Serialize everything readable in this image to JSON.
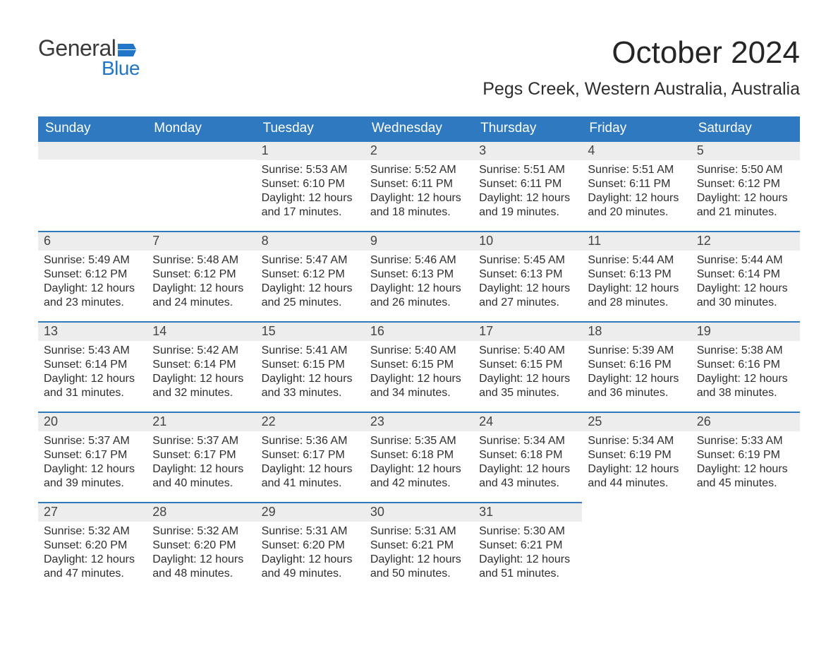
{
  "logo": {
    "text_general": "General",
    "text_blue": "Blue",
    "flag_color": "#2176c7"
  },
  "title": "October 2024",
  "subtitle": "Pegs Creek, Western Australia, Australia",
  "colors": {
    "header_bg": "#2e79c0",
    "header_text": "#ffffff",
    "daybar_bg": "#ededed",
    "daybar_border": "#2e79c0",
    "body_text": "#2e2e2e",
    "logo_blue": "#2176c7",
    "logo_gray": "#3a3a3a",
    "page_bg": "#ffffff"
  },
  "typography": {
    "title_fontsize": 44,
    "subtitle_fontsize": 25,
    "header_fontsize": 19,
    "daynum_fontsize": 18,
    "cell_fontsize": 16,
    "font_family": "Arial"
  },
  "weekdays": [
    "Sunday",
    "Monday",
    "Tuesday",
    "Wednesday",
    "Thursday",
    "Friday",
    "Saturday"
  ],
  "weeks": [
    [
      null,
      null,
      {
        "n": "1",
        "sunrise": "Sunrise: 5:53 AM",
        "sunset": "Sunset: 6:10 PM",
        "daylight": "Daylight: 12 hours and 17 minutes."
      },
      {
        "n": "2",
        "sunrise": "Sunrise: 5:52 AM",
        "sunset": "Sunset: 6:11 PM",
        "daylight": "Daylight: 12 hours and 18 minutes."
      },
      {
        "n": "3",
        "sunrise": "Sunrise: 5:51 AM",
        "sunset": "Sunset: 6:11 PM",
        "daylight": "Daylight: 12 hours and 19 minutes."
      },
      {
        "n": "4",
        "sunrise": "Sunrise: 5:51 AM",
        "sunset": "Sunset: 6:11 PM",
        "daylight": "Daylight: 12 hours and 20 minutes."
      },
      {
        "n": "5",
        "sunrise": "Sunrise: 5:50 AM",
        "sunset": "Sunset: 6:12 PM",
        "daylight": "Daylight: 12 hours and 21 minutes."
      }
    ],
    [
      {
        "n": "6",
        "sunrise": "Sunrise: 5:49 AM",
        "sunset": "Sunset: 6:12 PM",
        "daylight": "Daylight: 12 hours and 23 minutes."
      },
      {
        "n": "7",
        "sunrise": "Sunrise: 5:48 AM",
        "sunset": "Sunset: 6:12 PM",
        "daylight": "Daylight: 12 hours and 24 minutes."
      },
      {
        "n": "8",
        "sunrise": "Sunrise: 5:47 AM",
        "sunset": "Sunset: 6:12 PM",
        "daylight": "Daylight: 12 hours and 25 minutes."
      },
      {
        "n": "9",
        "sunrise": "Sunrise: 5:46 AM",
        "sunset": "Sunset: 6:13 PM",
        "daylight": "Daylight: 12 hours and 26 minutes."
      },
      {
        "n": "10",
        "sunrise": "Sunrise: 5:45 AM",
        "sunset": "Sunset: 6:13 PM",
        "daylight": "Daylight: 12 hours and 27 minutes."
      },
      {
        "n": "11",
        "sunrise": "Sunrise: 5:44 AM",
        "sunset": "Sunset: 6:13 PM",
        "daylight": "Daylight: 12 hours and 28 minutes."
      },
      {
        "n": "12",
        "sunrise": "Sunrise: 5:44 AM",
        "sunset": "Sunset: 6:14 PM",
        "daylight": "Daylight: 12 hours and 30 minutes."
      }
    ],
    [
      {
        "n": "13",
        "sunrise": "Sunrise: 5:43 AM",
        "sunset": "Sunset: 6:14 PM",
        "daylight": "Daylight: 12 hours and 31 minutes."
      },
      {
        "n": "14",
        "sunrise": "Sunrise: 5:42 AM",
        "sunset": "Sunset: 6:14 PM",
        "daylight": "Daylight: 12 hours and 32 minutes."
      },
      {
        "n": "15",
        "sunrise": "Sunrise: 5:41 AM",
        "sunset": "Sunset: 6:15 PM",
        "daylight": "Daylight: 12 hours and 33 minutes."
      },
      {
        "n": "16",
        "sunrise": "Sunrise: 5:40 AM",
        "sunset": "Sunset: 6:15 PM",
        "daylight": "Daylight: 12 hours and 34 minutes."
      },
      {
        "n": "17",
        "sunrise": "Sunrise: 5:40 AM",
        "sunset": "Sunset: 6:15 PM",
        "daylight": "Daylight: 12 hours and 35 minutes."
      },
      {
        "n": "18",
        "sunrise": "Sunrise: 5:39 AM",
        "sunset": "Sunset: 6:16 PM",
        "daylight": "Daylight: 12 hours and 36 minutes."
      },
      {
        "n": "19",
        "sunrise": "Sunrise: 5:38 AM",
        "sunset": "Sunset: 6:16 PM",
        "daylight": "Daylight: 12 hours and 38 minutes."
      }
    ],
    [
      {
        "n": "20",
        "sunrise": "Sunrise: 5:37 AM",
        "sunset": "Sunset: 6:17 PM",
        "daylight": "Daylight: 12 hours and 39 minutes."
      },
      {
        "n": "21",
        "sunrise": "Sunrise: 5:37 AM",
        "sunset": "Sunset: 6:17 PM",
        "daylight": "Daylight: 12 hours and 40 minutes."
      },
      {
        "n": "22",
        "sunrise": "Sunrise: 5:36 AM",
        "sunset": "Sunset: 6:17 PM",
        "daylight": "Daylight: 12 hours and 41 minutes."
      },
      {
        "n": "23",
        "sunrise": "Sunrise: 5:35 AM",
        "sunset": "Sunset: 6:18 PM",
        "daylight": "Daylight: 12 hours and 42 minutes."
      },
      {
        "n": "24",
        "sunrise": "Sunrise: 5:34 AM",
        "sunset": "Sunset: 6:18 PM",
        "daylight": "Daylight: 12 hours and 43 minutes."
      },
      {
        "n": "25",
        "sunrise": "Sunrise: 5:34 AM",
        "sunset": "Sunset: 6:19 PM",
        "daylight": "Daylight: 12 hours and 44 minutes."
      },
      {
        "n": "26",
        "sunrise": "Sunrise: 5:33 AM",
        "sunset": "Sunset: 6:19 PM",
        "daylight": "Daylight: 12 hours and 45 minutes."
      }
    ],
    [
      {
        "n": "27",
        "sunrise": "Sunrise: 5:32 AM",
        "sunset": "Sunset: 6:20 PM",
        "daylight": "Daylight: 12 hours and 47 minutes."
      },
      {
        "n": "28",
        "sunrise": "Sunrise: 5:32 AM",
        "sunset": "Sunset: 6:20 PM",
        "daylight": "Daylight: 12 hours and 48 minutes."
      },
      {
        "n": "29",
        "sunrise": "Sunrise: 5:31 AM",
        "sunset": "Sunset: 6:20 PM",
        "daylight": "Daylight: 12 hours and 49 minutes."
      },
      {
        "n": "30",
        "sunrise": "Sunrise: 5:31 AM",
        "sunset": "Sunset: 6:21 PM",
        "daylight": "Daylight: 12 hours and 50 minutes."
      },
      {
        "n": "31",
        "sunrise": "Sunrise: 5:30 AM",
        "sunset": "Sunset: 6:21 PM",
        "daylight": "Daylight: 12 hours and 51 minutes."
      },
      null,
      null
    ]
  ]
}
